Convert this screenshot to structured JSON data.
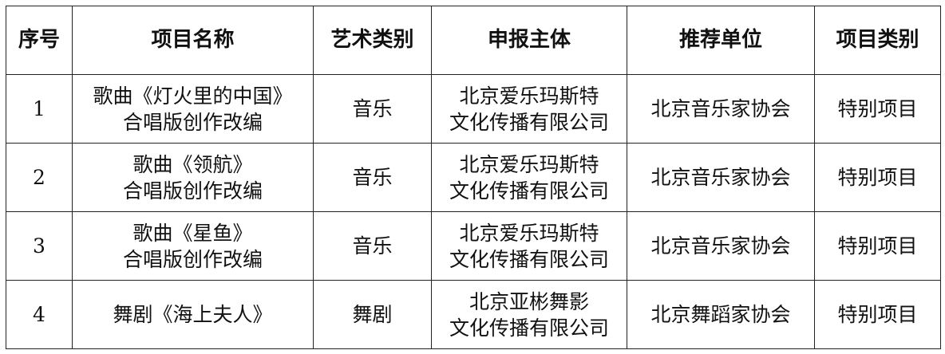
{
  "table": {
    "headers": [
      "序号",
      "项目名称",
      "艺术类别",
      "申报主体",
      "推荐单位",
      "项目类别"
    ],
    "rows": [
      {
        "no": "1",
        "name": [
          "歌曲《灯火里的中国》",
          "合唱版创作改编"
        ],
        "art": "音乐",
        "applicant": [
          "北京爱乐玛斯特",
          "文化传播有限公司"
        ],
        "recommender": "北京音乐家协会",
        "category": "特别项目"
      },
      {
        "no": "2",
        "name": [
          "歌曲《领航》",
          "合唱版创作改编"
        ],
        "art": "音乐",
        "applicant": [
          "北京爱乐玛斯特",
          "文化传播有限公司"
        ],
        "recommender": "北京音乐家协会",
        "category": "特别项目"
      },
      {
        "no": "3",
        "name": [
          "歌曲《星鱼》",
          "合唱版创作改编"
        ],
        "art": "音乐",
        "applicant": [
          "北京爱乐玛斯特",
          "文化传播有限公司"
        ],
        "recommender": "北京音乐家协会",
        "category": "特别项目"
      },
      {
        "no": "4",
        "name": [
          "舞剧《海上夫人》"
        ],
        "art": "舞剧",
        "applicant": [
          "北京亚彬舞影",
          "文化传播有限公司"
        ],
        "recommender": "北京舞蹈家协会",
        "category": "特别项目"
      }
    ]
  }
}
